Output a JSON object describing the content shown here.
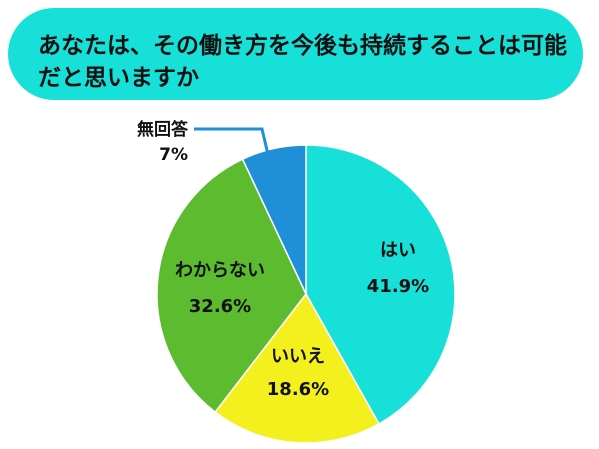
{
  "title": "あなたは、その働き方を今後も持続することは可能だと思いますか",
  "colors": {
    "title_background": "#17e0d9",
    "はい": "#17e0d9",
    "いいえ": "#f4f01e",
    "わからない": "#5cbb2e",
    "無回答": "#1f8fd8"
  },
  "chart_data": {
    "type": "pie",
    "title": "あなたは、その働き方を今後も持続することは可能だと思いますか",
    "start": "top",
    "direction": "clockwise",
    "slices": [
      {
        "label": "はい",
        "value": 41.9,
        "value_label": "41.9%",
        "color": "#17e0d9"
      },
      {
        "label": "いいえ",
        "value": 18.6,
        "value_label": "18.6%",
        "color": "#f4f01e"
      },
      {
        "label": "わからない",
        "value": 32.6,
        "value_label": "32.6%",
        "color": "#5cbb2e"
      },
      {
        "label": "無回答",
        "value": 7.0,
        "value_label": "7%",
        "color": "#1f8fd8"
      }
    ]
  }
}
